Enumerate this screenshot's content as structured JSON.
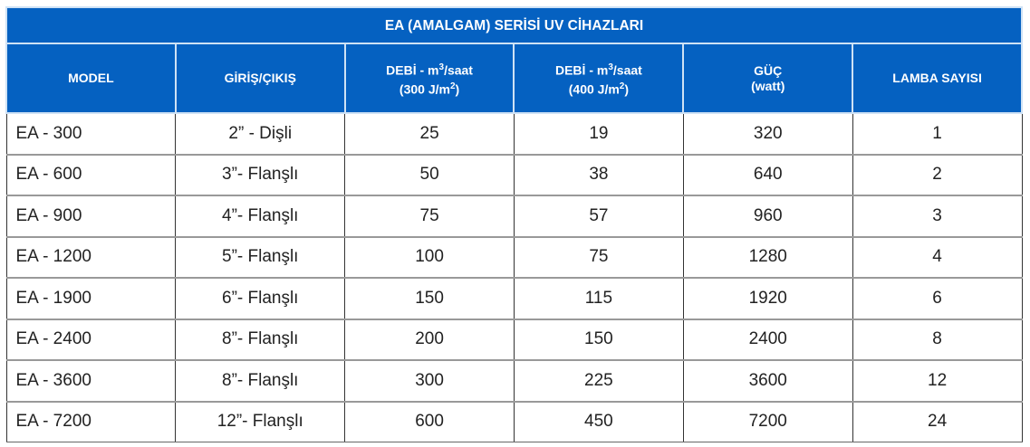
{
  "title": "EA (AMALGAM) SERİSİ UV CİHAZLARI",
  "headers": [
    {
      "line1": "MODEL",
      "line2": ""
    },
    {
      "line1": "GİRİŞ/ÇIKIŞ",
      "line2": ""
    },
    {
      "line1a": "DEBİ - m",
      "sup1": "3",
      "line1b": "/saat",
      "line2a": "(300 J/m",
      "sup2": "2",
      "line2b": ")"
    },
    {
      "line1a": "DEBİ - m",
      "sup1": "3",
      "line1b": "/saat",
      "line2a": "(400 J/m",
      "sup2": "2",
      "line2b": ")"
    },
    {
      "line1": "GÜÇ",
      "line2": "(watt)"
    },
    {
      "line1": "LAMBA SAYISI",
      "line2": ""
    }
  ],
  "rows": [
    [
      "EA - 300",
      "2” - Dişli",
      "25",
      "19",
      "320",
      "1"
    ],
    [
      "EA - 600",
      "3”- Flanşlı",
      "50",
      "38",
      "640",
      "2"
    ],
    [
      "EA - 900",
      "4”- Flanşlı",
      "75",
      "57",
      "960",
      "3"
    ],
    [
      "EA - 1200",
      "5”- Flanşlı",
      "100",
      "75",
      "1280",
      "4"
    ],
    [
      "EA - 1900",
      "6”- Flanşlı",
      "150",
      "115",
      "1920",
      "6"
    ],
    [
      "EA - 2400",
      "8”- Flanşlı",
      "200",
      "150",
      "2400",
      "8"
    ],
    [
      "EA - 3600",
      "8”- Flanşlı",
      "300",
      "225",
      "3600",
      "12"
    ],
    [
      "EA - 7200",
      "12”- Flanşlı",
      "600",
      "450",
      "7200",
      "24"
    ]
  ]
}
